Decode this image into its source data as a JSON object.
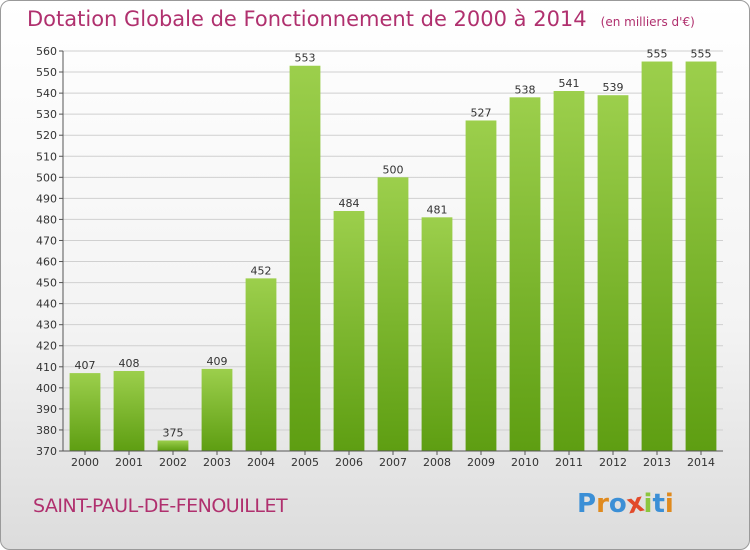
{
  "chart_data": {
    "type": "bar",
    "title": "Dotation Globale de Fonctionnement de 2000 à 2014",
    "subtitle": "(en milliers d'€)",
    "categories": [
      "2000",
      "2001",
      "2002",
      "2003",
      "2004",
      "2005",
      "2006",
      "2007",
      "2008",
      "2009",
      "2010",
      "2011",
      "2012",
      "2013",
      "2014"
    ],
    "values": [
      407,
      408,
      375,
      409,
      452,
      553,
      484,
      500,
      481,
      527,
      538,
      541,
      539,
      555,
      555
    ],
    "ylim": [
      370,
      560
    ],
    "ytick_step": 10,
    "grid": true,
    "bar_color_top": "#9ccf4c",
    "bar_color_bottom": "#5e9e12",
    "data_labels": true
  },
  "footer": {
    "commune": "SAINT-PAUL-DE-FENOUILLET",
    "logo_text": "Proxiti",
    "logo_letters": [
      {
        "char": "P",
        "color": "#3b8fd6"
      },
      {
        "char": "r",
        "color": "#e08a1e"
      },
      {
        "char": "o",
        "color": "#3b8fd6"
      },
      {
        "char": "x",
        "color": "#e24a2a"
      },
      {
        "char": "i",
        "color": "#8cc63f"
      },
      {
        "char": "t",
        "color": "#3b8fd6"
      },
      {
        "char": "i",
        "color": "#e08a1e"
      }
    ]
  },
  "colors": {
    "title": "#b0306e",
    "grid": "#d0d0d0",
    "axis": "#555555"
  }
}
